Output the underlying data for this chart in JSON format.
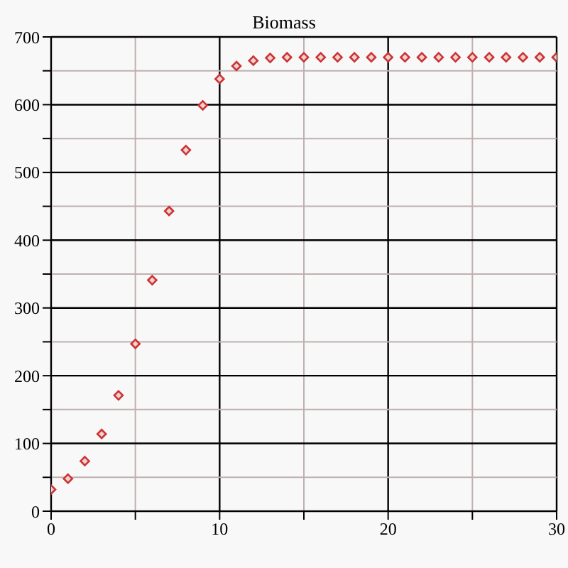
{
  "chart_data": {
    "type": "scatter",
    "title": "Biomass",
    "x": [
      0,
      1,
      2,
      3,
      4,
      5,
      6,
      7,
      8,
      9,
      10,
      11,
      12,
      13,
      14,
      15,
      16,
      17,
      18,
      19,
      20,
      21,
      22,
      23,
      24,
      25,
      26,
      27,
      28,
      29,
      30
    ],
    "series": [
      {
        "color": "#cc3333",
        "values": [
          32,
          48,
          74,
          114,
          171,
          247,
          341,
          443,
          533,
          599,
          638,
          657,
          665,
          669,
          670,
          670,
          670,
          670,
          670,
          670,
          670,
          670,
          670,
          670,
          670,
          670,
          670,
          670,
          670,
          670,
          670
        ]
      }
    ],
    "xlim": [
      0,
      30
    ],
    "xticks": [
      0,
      {
        "value": 5,
        "label": null
      },
      10,
      {
        "value": 15,
        "label": null
      },
      20,
      {
        "value": 25,
        "label": null
      },
      30
    ],
    "ylim": [
      0,
      700
    ],
    "yticks": [
      0,
      {
        "value": 50,
        "label": null
      },
      100,
      {
        "value": 150,
        "label": null
      },
      200,
      {
        "value": 250,
        "label": null
      },
      300,
      {
        "value": 350,
        "label": null
      },
      400,
      {
        "value": 450,
        "label": null
      },
      500,
      {
        "value": 550,
        "label": null
      },
      600,
      {
        "value": 650,
        "label": null
      },
      700
    ],
    "grid": true,
    "marker": "diamond"
  }
}
